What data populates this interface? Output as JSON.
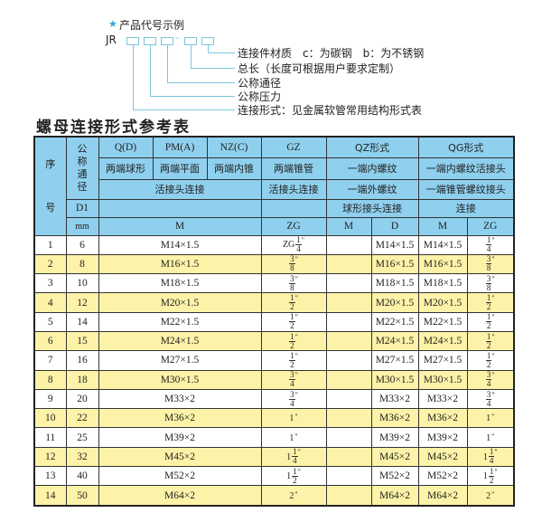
{
  "example": {
    "heading": "产品代号示例",
    "heading_icon": "star-icon",
    "code_prefix": "JR",
    "dash": "-",
    "labels": [
      "连接件材质　c：为碳钢　b：为不锈钢",
      "总长（长度可根据用户要求定制）",
      "公称通径",
      "公称压力",
      "连接形式：见金属软管常用结构形式表"
    ]
  },
  "title": "螺母连接形式参考表",
  "colors": {
    "header_bg": "#8fd0ee",
    "alt_row_bg": "#fdf3a8",
    "accent": "#2aa6d6"
  },
  "table": {
    "header": {
      "seq": "序\n号",
      "nominal": "公称通径",
      "qd": "Q(D)",
      "pma": "PM(A)",
      "nzc": "NZ(C)",
      "gz": "GZ",
      "qz": "QZ形式",
      "qg": "QG形式",
      "qd_desc": "两端球形",
      "pma_desc": "两端平面",
      "nzc_desc": "两端内锥",
      "gz_desc": "两端锥管",
      "qz_desc": "一端内螺纹",
      "qg_desc": "一端内螺纹活接头",
      "union_conn": "活接头连接",
      "gz_conn": "活接头连接",
      "qz_conn": "一端外螺纹",
      "qg_conn": "一端锥管螺纹接头",
      "d1": "D1",
      "qz_conn2": "球形接头连接",
      "qg_conn2": "连接",
      "mm": "mm",
      "m": "M",
      "zg": "ZG",
      "qz_m": "M",
      "qz_d": "D",
      "qg_m": "M",
      "qg_zg": "ZG"
    },
    "rows": [
      {
        "no": "1",
        "d1": "6",
        "m": "M14×1.5",
        "zg": {
          "pre": "ZG",
          "num": "1",
          "den": "4",
          "suf": "\""
        },
        "qz_m": "",
        "qz_d": "M14×1.5",
        "qg_m": "M14×1.5",
        "qg_zg": {
          "pre": "",
          "num": "1",
          "den": "4",
          "suf": "\""
        }
      },
      {
        "no": "2",
        "d1": "8",
        "m": "M16×1.5",
        "zg": {
          "pre": "",
          "num": "3",
          "den": "8",
          "suf": "\""
        },
        "qz_m": "",
        "qz_d": "M16×1.5",
        "qg_m": "M16×1.5",
        "qg_zg": {
          "pre": "",
          "num": "3",
          "den": "8",
          "suf": "\""
        }
      },
      {
        "no": "3",
        "d1": "10",
        "m": "M18×1.5",
        "zg": {
          "pre": "",
          "num": "3",
          "den": "8",
          "suf": "\""
        },
        "qz_m": "",
        "qz_d": "M18×1.5",
        "qg_m": "M18×1.5",
        "qg_zg": {
          "pre": "",
          "num": "3",
          "den": "8",
          "suf": "\""
        }
      },
      {
        "no": "4",
        "d1": "12",
        "m": "M20×1.5",
        "zg": {
          "pre": "",
          "num": "1",
          "den": "2",
          "suf": "\""
        },
        "qz_m": "",
        "qz_d": "M20×1.5",
        "qg_m": "M20×1.5",
        "qg_zg": {
          "pre": "",
          "num": "1",
          "den": "2",
          "suf": "\""
        }
      },
      {
        "no": "5",
        "d1": "14",
        "m": "M22×1.5",
        "zg": {
          "pre": "",
          "num": "1",
          "den": "2",
          "suf": "\""
        },
        "qz_m": "",
        "qz_d": "M22×1.5",
        "qg_m": "M22×1.5",
        "qg_zg": {
          "pre": "",
          "num": "1",
          "den": "2",
          "suf": "\""
        }
      },
      {
        "no": "6",
        "d1": "15",
        "m": "M24×1.5",
        "zg": {
          "pre": "",
          "num": "1",
          "den": "2",
          "suf": "\""
        },
        "qz_m": "",
        "qz_d": "M24×1.5",
        "qg_m": "M24×1.5",
        "qg_zg": {
          "pre": "",
          "num": "1",
          "den": "2",
          "suf": "\""
        }
      },
      {
        "no": "7",
        "d1": "16",
        "m": "M27×1.5",
        "zg": {
          "pre": "",
          "num": "1",
          "den": "2",
          "suf": "\""
        },
        "qz_m": "",
        "qz_d": "M27×1.5",
        "qg_m": "M27×1.5",
        "qg_zg": {
          "pre": "",
          "num": "1",
          "den": "2",
          "suf": "\""
        }
      },
      {
        "no": "8",
        "d1": "18",
        "m": "M30×1.5",
        "zg": {
          "pre": "",
          "num": "3",
          "den": "4",
          "suf": "\""
        },
        "qz_m": "",
        "qz_d": "M30×1.5",
        "qg_m": "M30×1.5",
        "qg_zg": {
          "pre": "",
          "num": "3",
          "den": "4",
          "suf": "\""
        }
      },
      {
        "no": "9",
        "d1": "20",
        "m": "M33×2",
        "zg": {
          "pre": "",
          "num": "3",
          "den": "4",
          "suf": "\""
        },
        "qz_m": "",
        "qz_d": "M33×2",
        "qg_m": "M33×2",
        "qg_zg": {
          "pre": "",
          "num": "3",
          "den": "4",
          "suf": "\""
        }
      },
      {
        "no": "10",
        "d1": "22",
        "m": "M36×2",
        "zg": {
          "pre": "1",
          "num": "",
          "den": "",
          "suf": "\""
        },
        "qz_m": "",
        "qz_d": "M36×2",
        "qg_m": "M36×2",
        "qg_zg": {
          "pre": "1",
          "num": "",
          "den": "",
          "suf": "\""
        }
      },
      {
        "no": "11",
        "d1": "25",
        "m": "M39×2",
        "zg": {
          "pre": "1",
          "num": "",
          "den": "",
          "suf": "\""
        },
        "qz_m": "",
        "qz_d": "M39×2",
        "qg_m": "M39×2",
        "qg_zg": {
          "pre": "1",
          "num": "",
          "den": "",
          "suf": "\""
        }
      },
      {
        "no": "12",
        "d1": "32",
        "m": "M45×2",
        "zg": {
          "pre": "1",
          "num": "1",
          "den": "4",
          "suf": "\""
        },
        "qz_m": "",
        "qz_d": "M45×2",
        "qg_m": "M45×2",
        "qg_zg": {
          "pre": "1",
          "num": "1",
          "den": "4",
          "suf": "\""
        }
      },
      {
        "no": "13",
        "d1": "40",
        "m": "M52×2",
        "zg": {
          "pre": "1",
          "num": "1",
          "den": "2",
          "suf": "\""
        },
        "qz_m": "",
        "qz_d": "M52×2",
        "qg_m": "M52×2",
        "qg_zg": {
          "pre": "1",
          "num": "1",
          "den": "2",
          "suf": "\""
        }
      },
      {
        "no": "14",
        "d1": "50",
        "m": "M64×2",
        "zg": {
          "pre": "2",
          "num": "",
          "den": "",
          "suf": "\""
        },
        "qz_m": "",
        "qz_d": "M64×2",
        "qg_m": "M64×2",
        "qg_zg": {
          "pre": "2",
          "num": "",
          "den": "",
          "suf": "\""
        }
      }
    ]
  }
}
